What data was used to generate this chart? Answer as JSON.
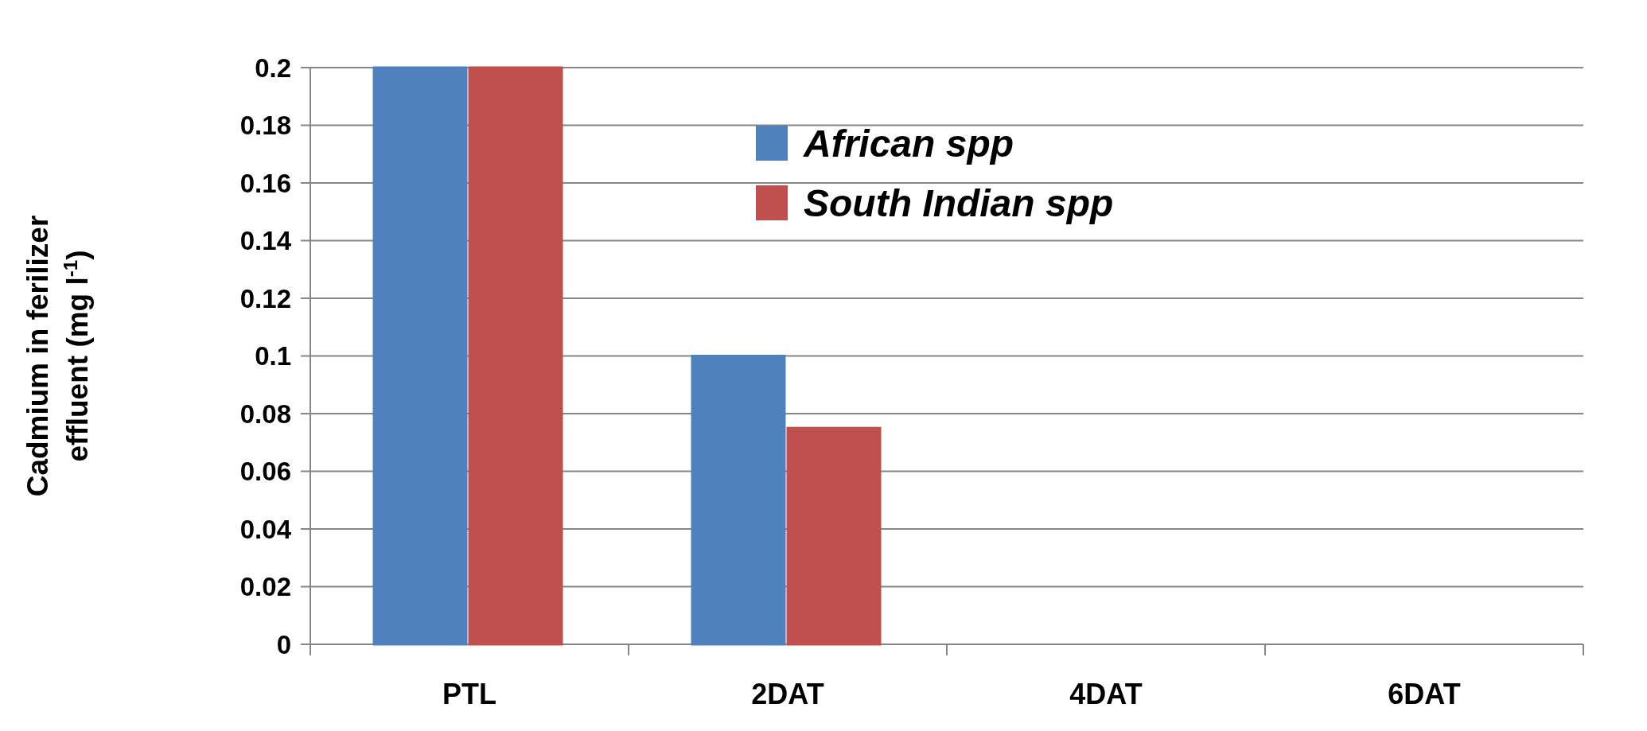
{
  "chart_data": {
    "type": "bar",
    "ylabel": "Cadmium  in ferilizer effluent (mg l$^{-1}$)",
    "categories": [
      "PTL",
      "2DAT",
      "4DAT",
      "6DAT"
    ],
    "series": [
      {
        "name": "African spp",
        "color": "#4f81bd",
        "values": [
          0.2,
          0.1,
          0,
          0
        ]
      },
      {
        "name": "South Indian spp",
        "color": "#c0504d",
        "values": [
          0.2,
          0.075,
          0,
          0
        ]
      }
    ],
    "ylim": [
      0,
      0.2
    ],
    "yticks": [
      0,
      0.02,
      0.04,
      0.06,
      0.08,
      0.1,
      0.12,
      0.14,
      0.16,
      0.18,
      0.2
    ],
    "grid": "y",
    "legend": "top"
  }
}
